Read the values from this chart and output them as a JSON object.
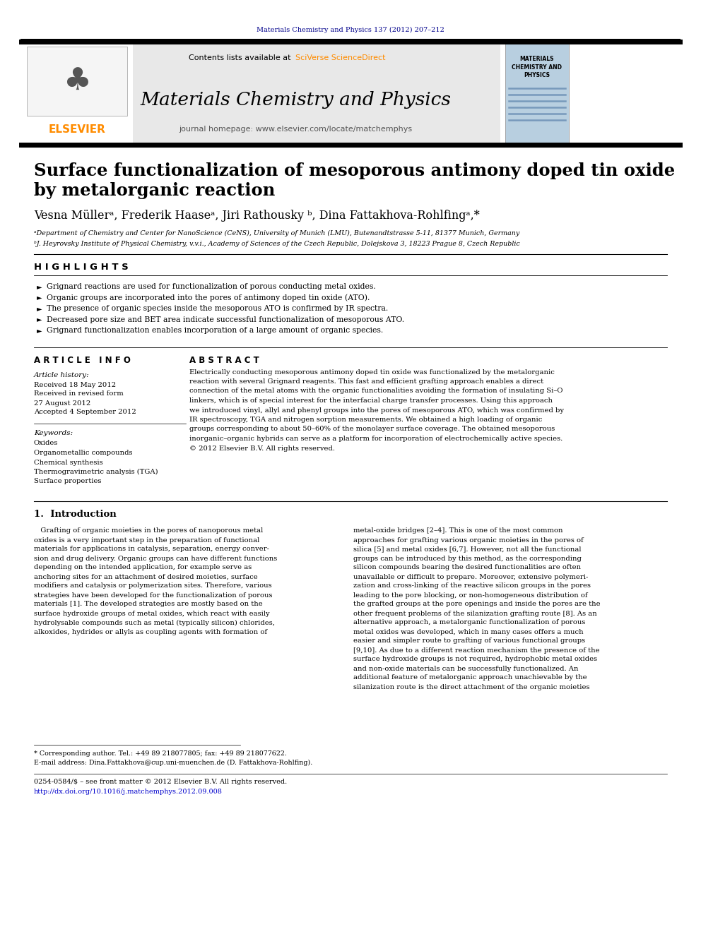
{
  "page_bg": "#ffffff",
  "top_journal_text": "Materials Chemistry and Physics 137 (2012) 207–212",
  "top_journal_color": "#00008B",
  "header_bg": "#e8e8e8",
  "journal_title": "Materials Chemistry and Physics",
  "journal_homepage": "journal homepage: www.elsevier.com/locate/matchemphys",
  "contents_text": "Contents lists available at ",
  "sciverse_text": "SciVerse ScienceDirect",
  "sciverse_color": "#FF8C00",
  "elsevier_color": "#FF8C00",
  "paper_title_line1": "Surface functionalization of mesoporous antimony doped tin oxide",
  "paper_title_line2": "by metalorganic reaction",
  "authors": "Vesna Müllerᵃ, Frederik Haaseᵃ, Jiri Rathousky ᵇ, Dina Fattakhova-Rohlfingᵃ,*",
  "affiliation_a": "ᵃDepartment of Chemistry and Center for NanoScience (CeNS), University of Munich (LMU), Butenandtstrasse 5-11, 81377 Munich, Germany",
  "affiliation_b": "ᵇJ. Heyrovsky Institute of Physical Chemistry, v.v.i., Academy of Sciences of the Czech Republic, Dolejskova 3, 18223 Prague 8, Czech Republic",
  "highlights_title": "H I G H L I G H T S",
  "highlights": [
    "Grignard reactions are used for functionalization of porous conducting metal oxides.",
    "Organic groups are incorporated into the pores of antimony doped tin oxide (ATO).",
    "The presence of organic species inside the mesoporous ATO is confirmed by IR spectra.",
    "Decreased pore size and BET area indicate successful functionalization of mesoporous ATO.",
    "Grignard functionalization enables incorporation of a large amount of organic species."
  ],
  "article_info_title": "A R T I C L E   I N F O",
  "article_history_label": "Article history:",
  "received_label": "Received 18 May 2012",
  "received_revised_label": "Received in revised form",
  "revised_date": "27 August 2012",
  "accepted_label": "Accepted 4 September 2012",
  "keywords_label": "Keywords:",
  "keywords": [
    "Oxides",
    "Organometallic compounds",
    "Chemical synthesis",
    "Thermogravimetric analysis (TGA)",
    "Surface properties"
  ],
  "abstract_title": "A B S T R A C T",
  "abstract_lines": [
    "Electrically conducting mesoporous antimony doped tin oxide was functionalized by the metalorganic",
    "reaction with several Grignard reagents. This fast and efficient grafting approach enables a direct",
    "connection of the metal atoms with the organic functionalities avoiding the formation of insulating Si–O",
    "linkers, which is of special interest for the interfacial charge transfer processes. Using this approach",
    "we introduced vinyl, allyl and phenyl groups into the pores of mesoporous ATO, which was confirmed by",
    "IR spectroscopy, TGA and nitrogen sorption measurements. We obtained a high loading of organic",
    "groups corresponding to about 50–60% of the monolayer surface coverage. The obtained mesoporous",
    "inorganic–organic hybrids can serve as a platform for incorporation of electrochemically active species.",
    "© 2012 Elsevier B.V. All rights reserved."
  ],
  "intro_title": "1.  Introduction",
  "intro_col1_lines": [
    "   Grafting of organic moieties in the pores of nanoporous metal",
    "oxides is a very important step in the preparation of functional",
    "materials for applications in catalysis, separation, energy conver-",
    "sion and drug delivery. Organic groups can have different functions",
    "depending on the intended application, for example serve as",
    "anchoring sites for an attachment of desired moieties, surface",
    "modifiers and catalysis or polymerization sites. Therefore, various",
    "strategies have been developed for the functionalization of porous",
    "materials [1]. The developed strategies are mostly based on the",
    "surface hydroxide groups of metal oxides, which react with easily",
    "hydrolysable compounds such as metal (typically silicon) chlorides,",
    "alkoxides, hydrides or allyls as coupling agents with formation of"
  ],
  "intro_col2_lines": [
    "metal-oxide bridges [2–4]. This is one of the most common",
    "approaches for grafting various organic moieties in the pores of",
    "silica [5] and metal oxides [6,7]. However, not all the functional",
    "groups can be introduced by this method, as the corresponding",
    "silicon compounds bearing the desired functionalities are often",
    "unavailable or difficult to prepare. Moreover, extensive polymeri-",
    "zation and cross-linking of the reactive silicon groups in the pores",
    "leading to the pore blocking, or non-homogeneous distribution of",
    "the grafted groups at the pore openings and inside the pores are the",
    "other frequent problems of the silanization grafting route [8]. As an",
    "alternative approach, a metalorganic functionalization of porous",
    "metal oxides was developed, which in many cases offers a much",
    "easier and simpler route to grafting of various functional groups",
    "[9,10]. As due to a different reaction mechanism the presence of the",
    "surface hydroxide groups is not required, hydrophobic metal oxides",
    "and non-oxide materials can be successfully functionalized. An",
    "additional feature of metalorganic approach unachievable by the",
    "silanization route is the direct attachment of the organic moieties"
  ],
  "footnote_star": "* Corresponding author. Tel.: +49 89 218077805; fax: +49 89 218077622.",
  "footnote_email": "E-mail address: Dina.Fattakhova@cup.uni-muenchen.de (D. Fattakhova-Rohlfing).",
  "bottom_issn": "0254-0584/$ – see front matter © 2012 Elsevier B.V. All rights reserved.",
  "bottom_doi": "http://dx.doi.org/10.1016/j.matchemphys.2012.09.008"
}
